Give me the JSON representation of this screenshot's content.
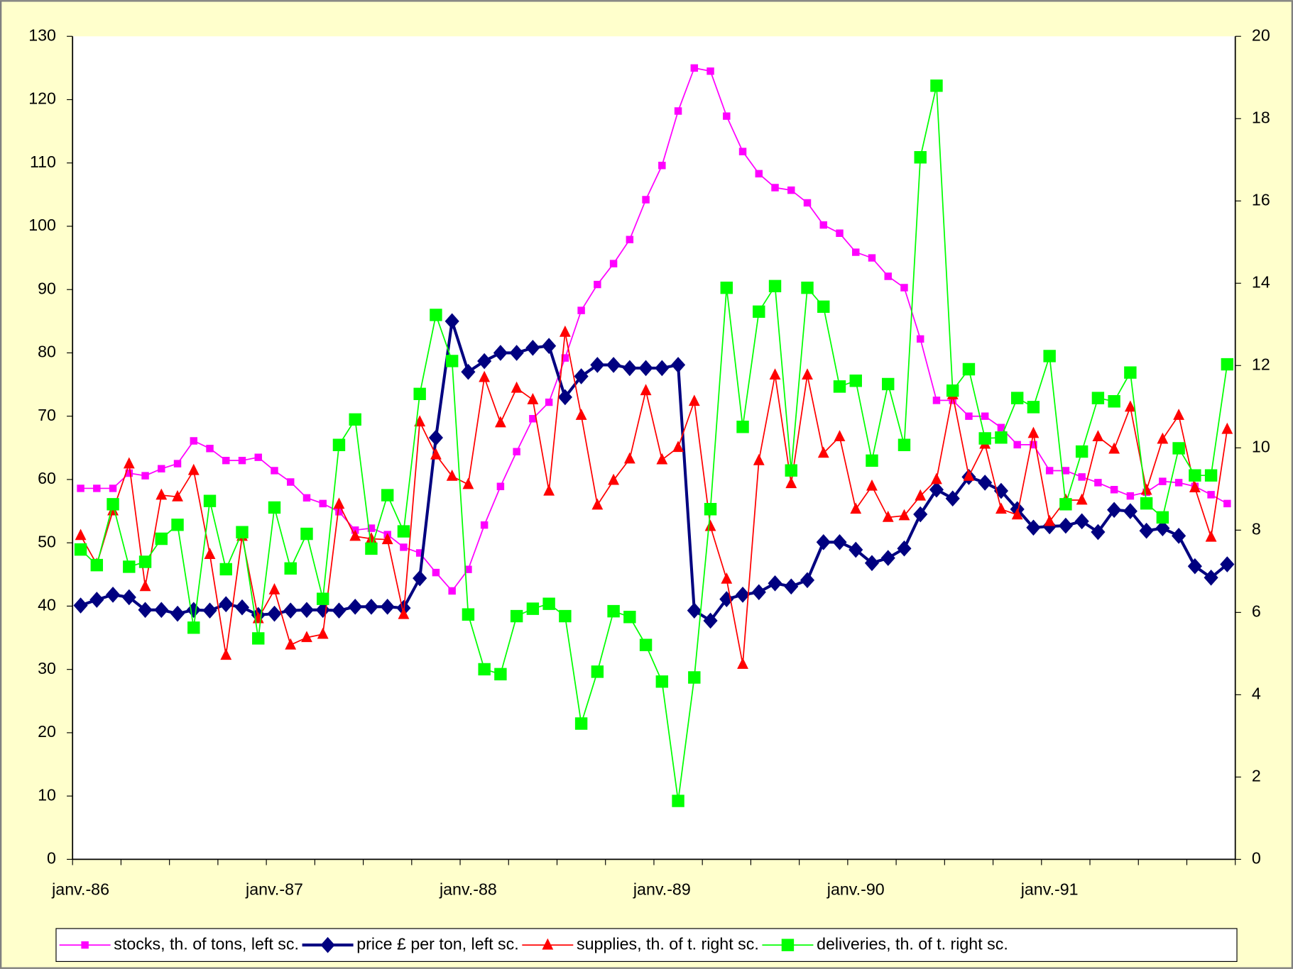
{
  "chart_data": {
    "type": "line",
    "categories": [
      "janv.-86",
      null,
      null,
      null,
      null,
      null,
      null,
      null,
      null,
      null,
      null,
      null,
      "janv.-87",
      null,
      null,
      null,
      null,
      null,
      null,
      null,
      null,
      null,
      null,
      null,
      "janv.-88",
      null,
      null,
      null,
      null,
      null,
      null,
      null,
      null,
      null,
      null,
      null,
      "janv.-89",
      null,
      null,
      null,
      null,
      null,
      null,
      null,
      null,
      null,
      null,
      null,
      "janv.-90",
      null,
      null,
      null,
      null,
      null,
      null,
      null,
      null,
      null,
      null,
      null,
      "janv.-91",
      null,
      null,
      null,
      null,
      null,
      null,
      null,
      null,
      null,
      null,
      null
    ],
    "ylim": [
      0,
      130
    ],
    "yticks": [
      0,
      10,
      20,
      30,
      40,
      50,
      60,
      70,
      80,
      90,
      100,
      110,
      120,
      130
    ],
    "y2lim": [
      0,
      20
    ],
    "y2ticks": [
      0,
      2,
      4,
      6,
      8,
      10,
      12,
      14,
      16,
      18,
      20
    ],
    "grid": false,
    "legend": "bottom",
    "series": [
      {
        "name": "stocks, th. of tons, left sc.",
        "color": "#ff00ff",
        "marker": "square-small",
        "line_width": 1.5,
        "values": [
          58.6,
          58.6,
          58.6,
          61.0,
          60.6,
          61.7,
          62.5,
          66.1,
          64.9,
          63.0,
          63.0,
          63.5,
          61.4,
          59.6,
          57.1,
          56.2,
          54.9,
          52.0,
          52.3,
          51.3,
          49.3,
          48.4,
          45.3,
          42.4,
          45.8,
          52.8,
          58.9,
          64.4,
          69.6,
          72.2,
          79.2,
          86.7,
          90.8,
          94.1,
          97.9,
          104.2,
          109.6,
          118.2,
          125.0,
          124.5,
          117.4,
          111.8,
          108.3,
          106.1,
          105.7,
          103.7,
          100.2,
          98.9,
          95.9,
          95.0,
          92.1,
          90.3,
          82.2,
          72.5,
          72.5,
          70.0,
          70.0,
          68.2,
          65.5,
          65.5,
          61.4,
          61.4,
          60.4,
          59.5,
          58.4,
          57.4,
          58.0,
          59.7,
          59.5,
          58.9,
          57.6,
          56.2
        ]
      },
      {
        "name": "price £ per ton, left sc.",
        "color": "#000080",
        "marker": "diamond",
        "line_width": 3.5,
        "values": [
          40.1,
          41.0,
          41.8,
          41.4,
          39.4,
          39.4,
          38.8,
          39.4,
          39.3,
          40.3,
          39.8,
          38.6,
          38.8,
          39.3,
          39.4,
          39.4,
          39.3,
          39.9,
          39.9,
          39.9,
          39.7,
          44.4,
          66.6,
          85.0,
          77.0,
          78.7,
          80.0,
          80.0,
          80.8,
          81.1,
          73.0,
          76.3,
          78.1,
          78.1,
          77.6,
          77.6,
          77.6,
          78.1,
          39.3,
          37.7,
          41.1,
          41.8,
          42.2,
          43.6,
          43.1,
          44.1,
          50.1,
          50.1,
          48.9,
          46.8,
          47.6,
          49.1,
          54.5,
          58.4,
          57.0,
          60.4,
          59.5,
          58.2,
          55.3,
          52.4,
          52.6,
          52.7,
          53.4,
          51.7,
          55.2,
          55.0,
          51.9,
          52.3,
          51.1,
          46.3,
          44.5,
          46.6
        ]
      },
      {
        "name": "supplies, th. of t. right sc.",
        "color": "#ff0000",
        "marker": "triangle",
        "line_width": 1.5,
        "axis": "y2",
        "values": [
          7.87,
          7.17,
          8.47,
          9.61,
          6.63,
          8.85,
          8.81,
          9.45,
          7.41,
          4.96,
          7.85,
          5.85,
          6.55,
          5.21,
          5.39,
          5.47,
          8.63,
          7.85,
          7.79,
          7.77,
          5.95,
          10.63,
          9.83,
          9.31,
          9.11,
          11.71,
          10.61,
          11.45,
          11.17,
          8.95,
          12.81,
          10.79,
          8.61,
          9.21,
          9.73,
          11.39,
          9.71,
          10.01,
          11.13,
          8.09,
          6.81,
          4.74,
          9.69,
          11.77,
          9.13,
          11.77,
          9.87,
          10.27,
          8.51,
          9.07,
          8.31,
          8.35,
          8.83,
          9.23,
          11.29,
          9.31,
          10.09,
          8.51,
          8.37,
          10.35,
          8.21,
          8.73,
          8.73,
          10.27,
          9.97,
          10.99,
          8.97,
          10.21,
          10.79,
          9.03,
          7.83,
          10.45
        ]
      },
      {
        "name": "deliveries, th. of t. right sc.",
        "color": "#00ff00",
        "marker": "square",
        "line_width": 1.5,
        "axis": "y2",
        "values": [
          7.53,
          7.15,
          8.63,
          7.11,
          7.23,
          7.79,
          8.13,
          5.63,
          8.71,
          7.05,
          7.95,
          5.37,
          8.55,
          7.07,
          7.91,
          6.33,
          10.07,
          10.69,
          7.55,
          8.85,
          7.97,
          11.31,
          13.23,
          12.11,
          5.95,
          4.62,
          4.5,
          5.91,
          6.09,
          6.21,
          5.91,
          3.3,
          4.56,
          6.03,
          5.89,
          5.21,
          4.32,
          1.42,
          4.42,
          8.51,
          13.89,
          10.51,
          13.31,
          13.93,
          9.45,
          13.89,
          13.43,
          11.49,
          11.63,
          9.69,
          11.55,
          10.07,
          17.06,
          18.8,
          11.39,
          11.91,
          10.23,
          10.25,
          11.21,
          10.99,
          12.23,
          8.63,
          9.91,
          11.21,
          11.13,
          11.83,
          8.65,
          8.31,
          9.99,
          9.33,
          9.33,
          12.03
        ]
      }
    ]
  }
}
